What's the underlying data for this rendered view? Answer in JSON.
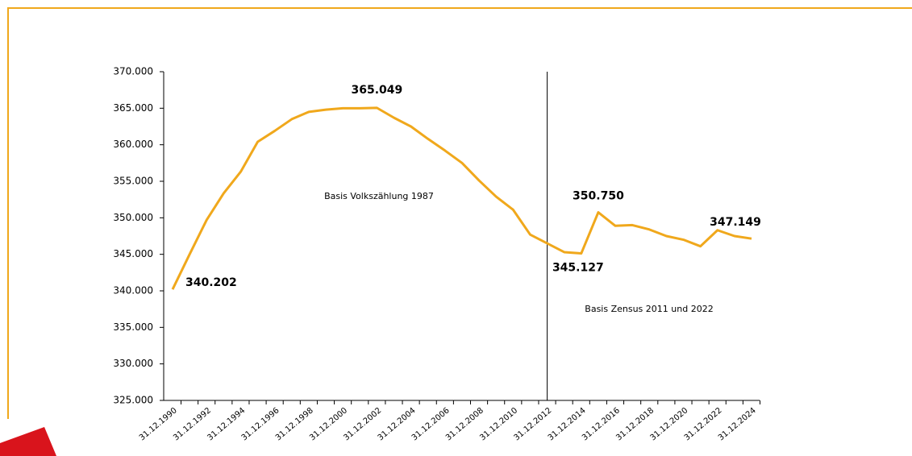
{
  "chart_data": {
    "type": "line",
    "categories": [
      "31.12.1990",
      null,
      "31.12.1992",
      null,
      "31.12.1994",
      null,
      "31.12.1996",
      null,
      "31.12.1998",
      null,
      "31.12.2000",
      null,
      "31.12.2002",
      null,
      "31.12.2004",
      null,
      "31.12.2006",
      null,
      "31.12.2008",
      null,
      "31.12.2010",
      null,
      "31.12.2012",
      null,
      "31.12.2014",
      null,
      "31.12.2016",
      null,
      "31.12.2018",
      null,
      "31.12.2020",
      null,
      "31.12.2022",
      null,
      "31.12.2024"
    ],
    "values": [
      340202,
      345000,
      349700,
      353350,
      356300,
      360400,
      361900,
      363500,
      364500,
      364800,
      365000,
      365000,
      365049,
      363700,
      362500,
      360800,
      359200,
      357500,
      355100,
      352900,
      351100,
      347700,
      346500,
      345300,
      345127,
      350750,
      348900,
      349000,
      348400,
      347500,
      347000,
      346100,
      348300,
      347500,
      347149
    ],
    "value_labels": [
      "340.202",
      null,
      null,
      null,
      null,
      null,
      null,
      null,
      null,
      null,
      null,
      null,
      "365.049",
      null,
      null,
      null,
      null,
      null,
      null,
      null,
      null,
      null,
      null,
      null,
      "345.127",
      "350.750",
      null,
      null,
      null,
      null,
      null,
      null,
      null,
      null,
      "347.149"
    ],
    "color": "#f0a81c",
    "ylim": [
      325000,
      370000
    ],
    "yticks": [
      {
        "value": 325000,
        "label": "325.000"
      },
      {
        "value": 330000,
        "label": "330.000"
      },
      {
        "value": 335000,
        "label": "335.000"
      },
      {
        "value": 340000,
        "label": "340.000"
      },
      {
        "value": 345000,
        "label": "345.000"
      },
      {
        "value": 350000,
        "label": "350.000"
      },
      {
        "value": 355000,
        "label": "355.000"
      },
      {
        "value": 360000,
        "label": "360.000"
      },
      {
        "value": 365000,
        "label": "365.000"
      },
      {
        "value": 370000,
        "label": "370.000"
      }
    ],
    "grid": false,
    "vline_index": 22,
    "annotations": [
      "Basis Volkszählung 1987",
      "Basis Zensus 2011 und 2022"
    ]
  }
}
